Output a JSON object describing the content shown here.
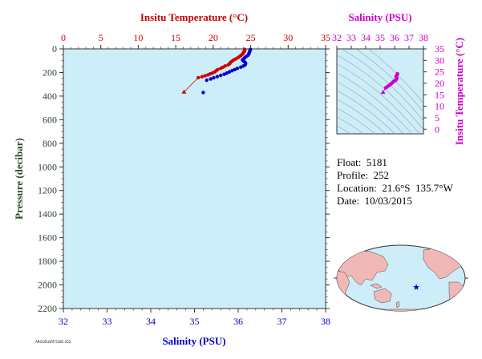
{
  "colors": {
    "temperature": "#cc0000",
    "salinity": "#0000cc",
    "inset_accent": "#cc00cc",
    "pressure_axis": "#2e4a2e",
    "plot_bg": "#cdeef8",
    "land": "#f2b8b8",
    "ocean": "#cdeef8"
  },
  "float_info": {
    "float": "Float:  5181",
    "profile": "Profile:  252",
    "location": "Location:  21.6°S  135.7°W",
    "date": "Date:  10/03/2015"
  },
  "footer_code": "ARGOFLOAT-5181-252",
  "chart_data": [
    {
      "type": "scatter",
      "name_id": "profile-plot",
      "top_axis_label": "Insitu Temperature (°C)",
      "bottom_axis_label": "Salinity (PSU)",
      "left_axis_label": "Pressure (decibar)",
      "temp_range": [
        0,
        35
      ],
      "temp_ticks": [
        0,
        5,
        10,
        15,
        20,
        25,
        30,
        35
      ],
      "sal_range": [
        32,
        38
      ],
      "sal_ticks": [
        32,
        33,
        34,
        35,
        36,
        37,
        38
      ],
      "pressure_range": [
        0,
        2200
      ],
      "pressure_ticks": [
        0,
        200,
        400,
        600,
        800,
        1000,
        1200,
        1400,
        1600,
        1800,
        2000,
        2200
      ],
      "pressure_reversed": true,
      "series": [
        {
          "variable": "temperature",
          "points": [
            [
              24.2,
              5
            ],
            [
              24.2,
              15
            ],
            [
              24.1,
              25
            ],
            [
              24.0,
              35
            ],
            [
              23.9,
              45
            ],
            [
              23.7,
              55
            ],
            [
              23.5,
              65
            ],
            [
              23.3,
              75
            ],
            [
              23.0,
              85
            ],
            [
              22.7,
              95
            ],
            [
              22.5,
              105
            ],
            [
              22.3,
              115
            ],
            [
              22.2,
              125
            ],
            [
              22.0,
              135
            ],
            [
              21.6,
              145
            ],
            [
              21.3,
              155
            ],
            [
              21.0,
              165
            ],
            [
              20.6,
              175
            ],
            [
              20.4,
              185
            ],
            [
              20.2,
              195
            ],
            [
              19.9,
              205
            ],
            [
              19.6,
              212
            ],
            [
              19.3,
              220
            ],
            [
              18.9,
              228
            ],
            [
              18.5,
              236
            ],
            [
              18.0,
              244
            ],
            [
              16.1,
              365
            ]
          ]
        },
        {
          "variable": "salinity",
          "points": [
            [
              36.28,
              5
            ],
            [
              36.27,
              15
            ],
            [
              36.26,
              25
            ],
            [
              36.25,
              35
            ],
            [
              36.24,
              45
            ],
            [
              36.22,
              55
            ],
            [
              36.18,
              65
            ],
            [
              36.15,
              75
            ],
            [
              36.12,
              85
            ],
            [
              36.1,
              95
            ],
            [
              36.13,
              105
            ],
            [
              36.16,
              115
            ],
            [
              36.17,
              125
            ],
            [
              36.16,
              135
            ],
            [
              36.12,
              145
            ],
            [
              36.06,
              155
            ],
            [
              35.98,
              165
            ],
            [
              35.92,
              175
            ],
            [
              35.86,
              185
            ],
            [
              35.8,
              195
            ],
            [
              35.74,
              205
            ],
            [
              35.68,
              215
            ],
            [
              35.6,
              225
            ],
            [
              35.52,
              235
            ],
            [
              35.44,
              245
            ],
            [
              35.37,
              255
            ],
            [
              35.28,
              265
            ],
            [
              35.2,
              370
            ]
          ]
        }
      ]
    },
    {
      "type": "scatter",
      "name_id": "ts-inset",
      "top_axis_label": "Salinity (PSU)",
      "right_axis_label": "Insitu Temperature (°C)",
      "sal_range": [
        32,
        38
      ],
      "sal_ticks": [
        32,
        33,
        34,
        35,
        36,
        37,
        38
      ],
      "temp_range": [
        -2,
        35
      ],
      "temp_ticks": [
        0,
        5,
        10,
        15,
        20,
        25,
        30,
        35
      ],
      "points": [
        [
          36.2,
          24.2
        ],
        [
          36.2,
          24.0
        ],
        [
          36.15,
          23.5
        ],
        [
          36.1,
          23.0
        ],
        [
          36.12,
          22.5
        ],
        [
          36.16,
          22.2
        ],
        [
          36.15,
          22.0
        ],
        [
          36.1,
          21.6
        ],
        [
          36.05,
          21.2
        ],
        [
          35.98,
          21.0
        ],
        [
          35.9,
          20.6
        ],
        [
          35.85,
          20.3
        ],
        [
          35.8,
          20.0
        ],
        [
          35.72,
          19.6
        ],
        [
          35.65,
          19.2
        ],
        [
          35.55,
          18.8
        ],
        [
          35.45,
          18.3
        ],
        [
          35.38,
          18.0
        ]
      ],
      "end_point": [
        35.2,
        16.1
      ]
    }
  ],
  "map": {
    "marker_location": "21.6°S 135.7°W"
  }
}
